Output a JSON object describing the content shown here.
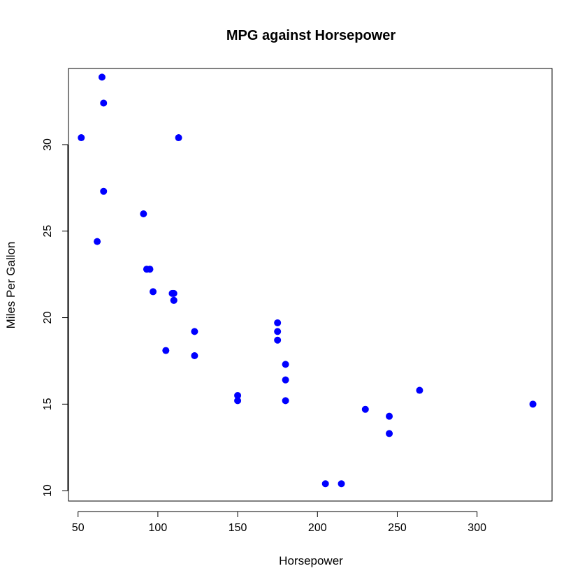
{
  "chart_data": {
    "type": "scatter",
    "title": "MPG against Horsepower",
    "xlabel": "Horsepower",
    "ylabel": "Miles Per Gallon",
    "xlim": [
      44,
      347
    ],
    "ylim": [
      9.4,
      34.4
    ],
    "x_ticks": [
      50,
      100,
      150,
      200,
      250,
      300
    ],
    "y_ticks": [
      10,
      15,
      20,
      25,
      30
    ],
    "point_color": "#0000ff",
    "grid": false,
    "legend": false,
    "points": [
      {
        "x": 110,
        "y": 21.0
      },
      {
        "x": 110,
        "y": 21.0
      },
      {
        "x": 93,
        "y": 22.8
      },
      {
        "x": 110,
        "y": 21.4
      },
      {
        "x": 175,
        "y": 18.7
      },
      {
        "x": 105,
        "y": 18.1
      },
      {
        "x": 245,
        "y": 14.3
      },
      {
        "x": 62,
        "y": 24.4
      },
      {
        "x": 95,
        "y": 22.8
      },
      {
        "x": 123,
        "y": 19.2
      },
      {
        "x": 123,
        "y": 17.8
      },
      {
        "x": 180,
        "y": 16.4
      },
      {
        "x": 180,
        "y": 17.3
      },
      {
        "x": 180,
        "y": 15.2
      },
      {
        "x": 205,
        "y": 10.4
      },
      {
        "x": 215,
        "y": 10.4
      },
      {
        "x": 230,
        "y": 14.7
      },
      {
        "x": 66,
        "y": 32.4
      },
      {
        "x": 52,
        "y": 30.4
      },
      {
        "x": 65,
        "y": 33.9
      },
      {
        "x": 97,
        "y": 21.5
      },
      {
        "x": 150,
        "y": 15.5
      },
      {
        "x": 150,
        "y": 15.2
      },
      {
        "x": 245,
        "y": 13.3
      },
      {
        "x": 175,
        "y": 19.2
      },
      {
        "x": 66,
        "y": 27.3
      },
      {
        "x": 91,
        "y": 26.0
      },
      {
        "x": 113,
        "y": 30.4
      },
      {
        "x": 264,
        "y": 15.8
      },
      {
        "x": 175,
        "y": 19.7
      },
      {
        "x": 335,
        "y": 15.0
      },
      {
        "x": 109,
        "y": 21.4
      }
    ]
  }
}
